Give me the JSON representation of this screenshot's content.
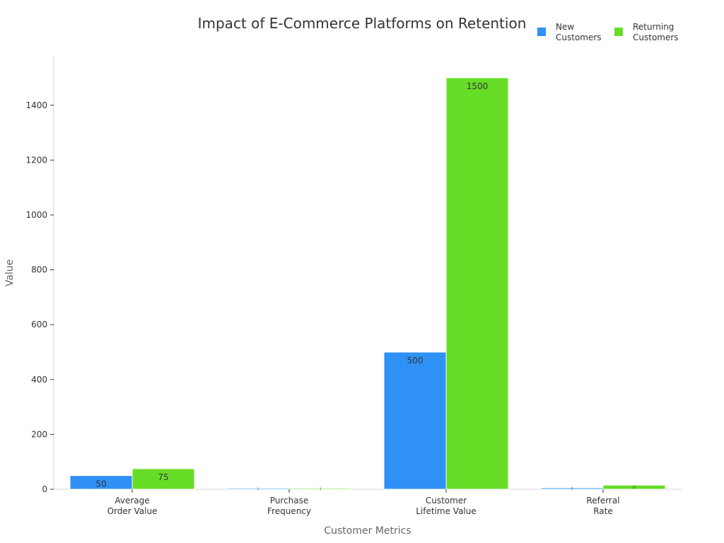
{
  "chart_data": {
    "type": "bar",
    "title": "Impact of E-Commerce Platforms on Retention",
    "xlabel": "Customer Metrics",
    "ylabel": "Value",
    "categories": [
      [
        "Average",
        "Order Value"
      ],
      [
        "Purchase",
        "Frequency"
      ],
      [
        "Customer",
        "Lifetime Value"
      ],
      [
        "Referral",
        "Rate"
      ]
    ],
    "series": [
      {
        "name": [
          "New",
          "Customers"
        ],
        "color": "#2f91f6",
        "values": [
          50,
          1,
          500,
          5
        ],
        "labels": [
          "50",
          "1",
          "500",
          "5"
        ]
      },
      {
        "name": [
          "Returning",
          "Customers"
        ],
        "color": "#66dd26",
        "values": [
          75,
          3,
          1500,
          15
        ],
        "labels": [
          "75",
          "3",
          "1500",
          "15"
        ]
      }
    ],
    "ylim": [
      0,
      1550
    ],
    "yticks": [
      0,
      200,
      400,
      600,
      800,
      1000,
      1200,
      1400
    ],
    "grid": false,
    "legend_position": "top-right"
  }
}
